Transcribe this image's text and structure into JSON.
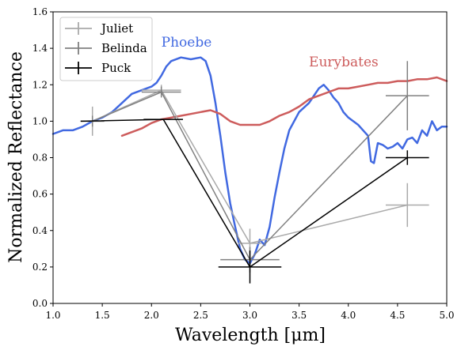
{
  "chart_data": {
    "type": "line",
    "title": "",
    "xlabel": "Wavelength [μm]",
    "ylabel": "Normalized Reflectance",
    "xlim": [
      1.0,
      5.0
    ],
    "ylim": [
      0.0,
      1.6
    ],
    "xticks": [
      1.0,
      1.5,
      2.0,
      2.5,
      3.0,
      3.5,
      4.0,
      4.5,
      5.0
    ],
    "yticks": [
      0.0,
      0.2,
      0.4,
      0.6,
      0.8,
      1.0,
      1.2,
      1.4,
      1.6
    ],
    "xtick_labels": [
      "1.0",
      "1.5",
      "2.0",
      "2.5",
      "3.0",
      "3.5",
      "4.0",
      "4.5",
      "5.0"
    ],
    "ytick_labels": [
      "0.0",
      "0.2",
      "0.4",
      "0.6",
      "0.8",
      "1.0",
      "1.2",
      "1.4",
      "1.6"
    ],
    "grid": false,
    "legend_position": "top-left",
    "series": [
      {
        "name": "Phoebe",
        "kind": "line",
        "color": "#4169e1",
        "x": [
          1.0,
          1.1,
          1.2,
          1.3,
          1.4,
          1.5,
          1.6,
          1.7,
          1.8,
          1.9,
          2.0,
          2.05,
          2.1,
          2.15,
          2.2,
          2.3,
          2.4,
          2.5,
          2.55,
          2.6,
          2.65,
          2.7,
          2.75,
          2.8,
          2.85,
          2.9,
          2.95,
          3.0,
          3.05,
          3.1,
          3.15,
          3.2,
          3.25,
          3.3,
          3.35,
          3.4,
          3.5,
          3.6,
          3.7,
          3.75,
          3.8,
          3.85,
          3.9,
          3.95,
          4.0,
          4.05,
          4.1,
          4.15,
          4.2,
          4.23,
          4.26,
          4.3,
          4.35,
          4.4,
          4.45,
          4.5,
          4.55,
          4.6,
          4.65,
          4.7,
          4.75,
          4.8,
          4.85,
          4.9,
          4.95,
          5.0
        ],
        "y": [
          0.93,
          0.95,
          0.95,
          0.97,
          1.0,
          1.02,
          1.05,
          1.1,
          1.15,
          1.17,
          1.19,
          1.21,
          1.25,
          1.3,
          1.33,
          1.35,
          1.34,
          1.35,
          1.33,
          1.25,
          1.1,
          0.92,
          0.72,
          0.55,
          0.42,
          0.3,
          0.24,
          0.22,
          0.27,
          0.35,
          0.32,
          0.42,
          0.58,
          0.72,
          0.85,
          0.95,
          1.05,
          1.1,
          1.18,
          1.2,
          1.17,
          1.13,
          1.1,
          1.05,
          1.02,
          1.0,
          0.98,
          0.95,
          0.92,
          0.78,
          0.77,
          0.88,
          0.87,
          0.85,
          0.86,
          0.88,
          0.85,
          0.9,
          0.91,
          0.88,
          0.95,
          0.92,
          1.0,
          0.95,
          0.97,
          0.97
        ]
      },
      {
        "name": "Eurybates",
        "kind": "line",
        "color": "#cd5c5c",
        "x": [
          1.7,
          1.8,
          1.9,
          2.0,
          2.1,
          2.2,
          2.3,
          2.4,
          2.5,
          2.6,
          2.7,
          2.8,
          2.9,
          3.0,
          3.1,
          3.2,
          3.3,
          3.4,
          3.5,
          3.6,
          3.7,
          3.8,
          3.9,
          4.0,
          4.1,
          4.2,
          4.3,
          4.4,
          4.5,
          4.6,
          4.7,
          4.8,
          4.9,
          5.0
        ],
        "y": [
          0.92,
          0.94,
          0.96,
          0.99,
          1.01,
          1.02,
          1.03,
          1.04,
          1.05,
          1.06,
          1.04,
          1.0,
          0.98,
          0.98,
          0.98,
          1.0,
          1.03,
          1.05,
          1.08,
          1.12,
          1.14,
          1.16,
          1.18,
          1.18,
          1.19,
          1.2,
          1.21,
          1.21,
          1.22,
          1.22,
          1.23,
          1.23,
          1.24,
          1.22
        ]
      },
      {
        "name": "Juliet",
        "kind": "errorbar",
        "color": "#aaaaaa",
        "x": [
          1.4,
          2.1,
          3.0,
          4.6
        ],
        "y": [
          1.0,
          1.17,
          0.33,
          0.54
        ],
        "xerr": [
          0.12,
          0.2,
          0.12,
          0.22
        ],
        "yerr": [
          0.08,
          0.03,
          0.08,
          0.12
        ]
      },
      {
        "name": "Belinda",
        "kind": "errorbar",
        "color": "#808080",
        "x": [
          1.4,
          2.1,
          3.0,
          4.6
        ],
        "y": [
          1.0,
          1.16,
          0.24,
          1.14
        ],
        "xerr": [
          0.12,
          0.2,
          0.3,
          0.22
        ],
        "yerr": [
          0.03,
          0.03,
          0.07,
          0.19
        ]
      },
      {
        "name": "Puck",
        "kind": "errorbar",
        "color": "#000000",
        "x": [
          1.28,
          2.12,
          3.0,
          4.6
        ],
        "y": [
          1.0,
          1.01,
          0.2,
          0.8
        ],
        "xerr": [
          0.0,
          0.2,
          0.32,
          0.22
        ],
        "yerr": [
          0.0,
          0.0,
          0.09,
          0.04
        ]
      }
    ],
    "annotations": [
      {
        "text": "Phoebe",
        "x": 2.1,
        "y": 1.41,
        "color": "#4169e1"
      },
      {
        "text": "Eurybates",
        "x": 3.6,
        "y": 1.3,
        "color": "#cd5c5c"
      }
    ],
    "legend": [
      "Juliet",
      "Belinda",
      "Puck"
    ]
  }
}
